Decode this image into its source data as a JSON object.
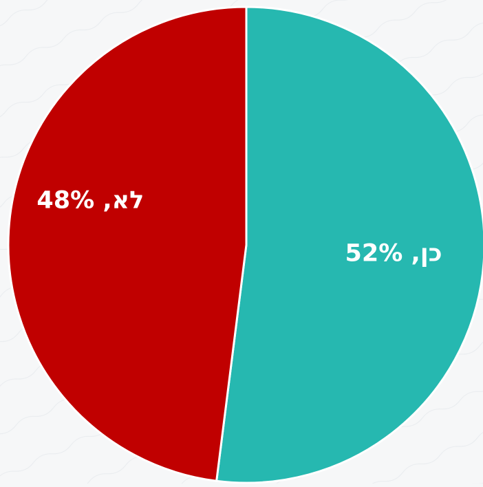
{
  "chart_data": {
    "type": "pie",
    "title": "",
    "slices": [
      {
        "label": "כן",
        "value": 52,
        "data_label": "כן, 52%",
        "color": "#26b8b0"
      },
      {
        "label": "לא",
        "value": 48,
        "data_label": "לא, 48%",
        "color": "#c00000"
      }
    ],
    "start_angle_deg": 0,
    "direction": "clockwise",
    "legend": "none",
    "slice_border_color": "#ffffff",
    "background_color": "#f6f7f8"
  }
}
